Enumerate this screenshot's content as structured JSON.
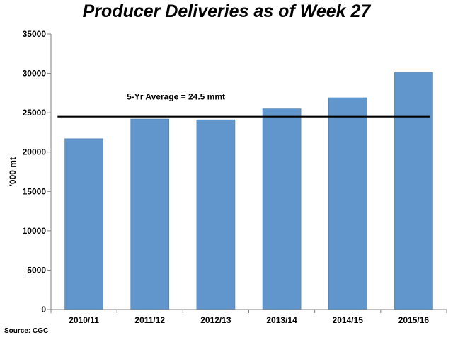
{
  "chart_data": {
    "type": "bar",
    "title": "Producer Deliveries as of Week 27",
    "ylabel": "'000 mt",
    "xlabel": "",
    "categories": [
      "2010/11",
      "2011/12",
      "2012/13",
      "2013/14",
      "2014/15",
      "2015/16"
    ],
    "values": [
      21700,
      24200,
      24100,
      25500,
      26900,
      30100
    ],
    "ylim": [
      0,
      35000
    ],
    "yticks": [
      0,
      5000,
      10000,
      15000,
      20000,
      25000,
      30000,
      35000
    ],
    "grid": false,
    "bar_color": "#6096cc",
    "reference_line": {
      "value": 24500,
      "label": "5-Yr Average = 24.5 mmt",
      "color": "#000000"
    },
    "source": "Source: CGC"
  }
}
